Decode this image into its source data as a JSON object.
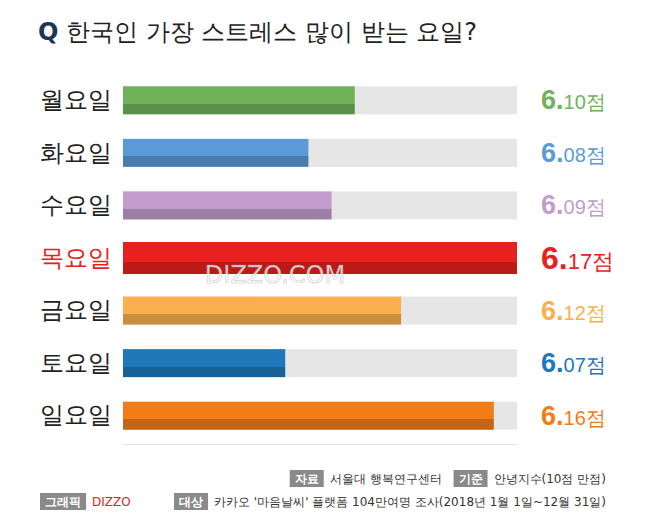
{
  "chart_data": {
    "type": "bar",
    "orientation": "horizontal",
    "title": "Q 한국인 가장 스트레스 많이 받는 요일?",
    "categories": [
      "월요일",
      "화요일",
      "수요일",
      "목요일",
      "금요일",
      "토요일",
      "일요일"
    ],
    "values": [
      6.1,
      6.08,
      6.09,
      6.17,
      6.12,
      6.07,
      6.16
    ],
    "value_labels": [
      "6.10점",
      "6.08점",
      "6.09점",
      "6.17점",
      "6.12점",
      "6.07점",
      "6.16점"
    ],
    "colors": [
      "#6fb25a",
      "#5b9ad8",
      "#c29ccc",
      "#e8211e",
      "#fbb04e",
      "#1e78ba",
      "#f47c17"
    ],
    "xlim": [
      6.0,
      6.17
    ],
    "tick_labels": "y",
    "data_labels": true,
    "grid": false,
    "watermark": "DIZZO.COM",
    "annotations": [
      {
        "label": "자료",
        "text": "서울대 행복연구센터"
      },
      {
        "label": "기준",
        "text": "안녕지수(10점 만점)"
      },
      {
        "label": "대상",
        "text": "카카오 '마음날씨' 플랫폼 104만여명 조사(2018년 1월 1일~12월 31일)"
      },
      {
        "label": "그래픽",
        "text": "DIZZO"
      }
    ]
  }
}
